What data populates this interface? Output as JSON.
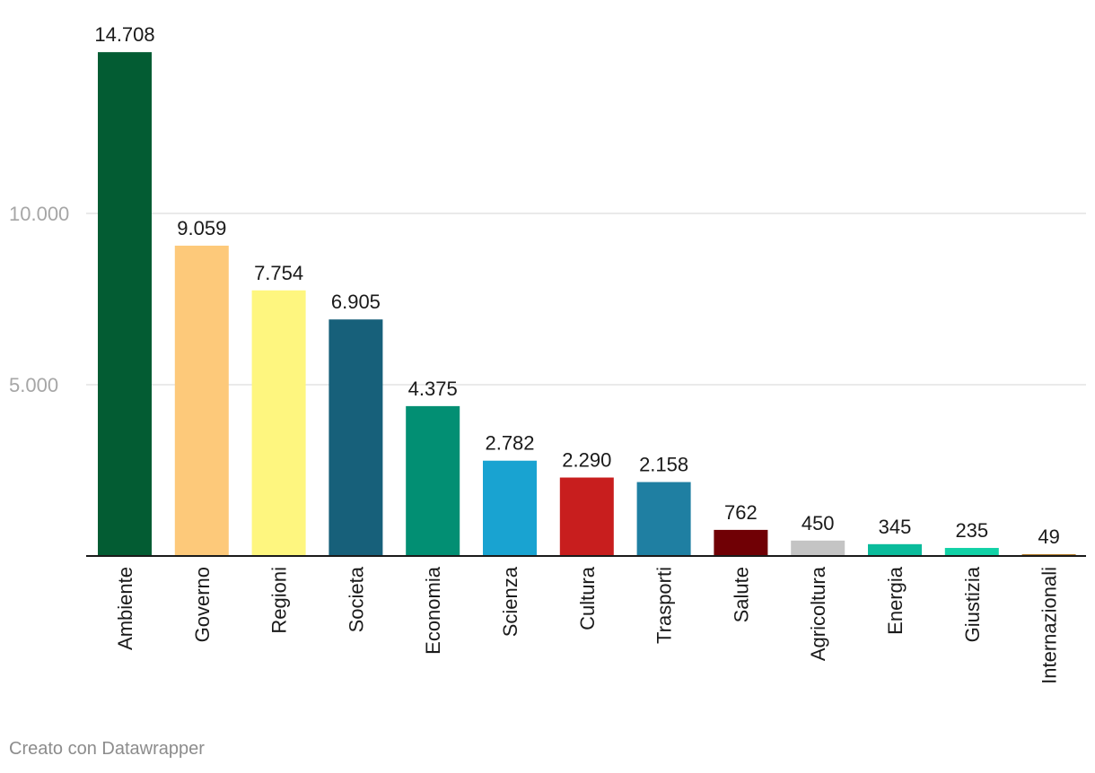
{
  "chart_data": {
    "type": "bar",
    "title": "",
    "xlabel": "",
    "ylabel": "",
    "ylim": [
      0,
      15000
    ],
    "yticks": [
      {
        "value": 5000,
        "label": "5.000"
      },
      {
        "value": 10000,
        "label": "10.000"
      }
    ],
    "grid": true,
    "categories": [
      "Ambiente",
      "Governo",
      "Regioni",
      "Societa",
      "Economia",
      "Scienza",
      "Cultura",
      "Trasporti",
      "Salute",
      "Agricoltura",
      "Energia",
      "Giustizia",
      "Internazionali"
    ],
    "values": [
      14708,
      9059,
      7754,
      6905,
      4375,
      2782,
      2290,
      2158,
      762,
      450,
      345,
      235,
      49
    ],
    "value_labels": [
      "14.708",
      "9.059",
      "7.754",
      "6.905",
      "4.375",
      "2.782",
      "2.290",
      "2.158",
      "762",
      "450",
      "345",
      "235",
      "49"
    ],
    "colors": [
      "#035c33",
      "#fdc97a",
      "#fef67f",
      "#17607a",
      "#028f73",
      "#19a3d1",
      "#c81e1e",
      "#1f7fa2",
      "#700005",
      "#c4c4c4",
      "#0abb9b",
      "#11d1a6",
      "#b17a27"
    ]
  },
  "footer": {
    "credit": "Creato con Datawrapper"
  }
}
